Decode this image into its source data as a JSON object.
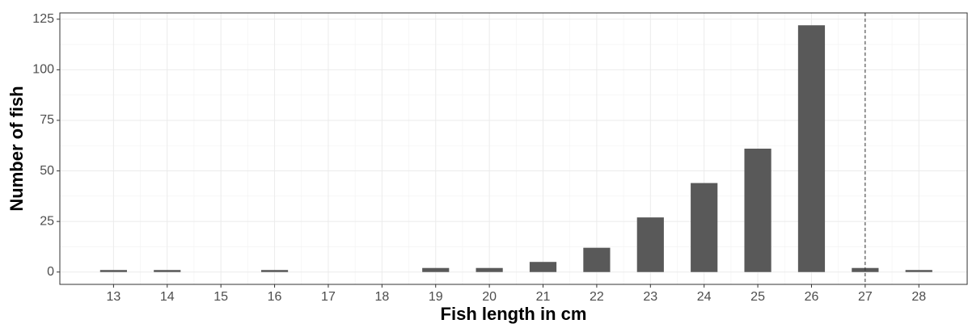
{
  "chart_data": {
    "type": "bar",
    "x_label": "Fish length in cm",
    "y_label": "Number of fish",
    "x": [
      13,
      14,
      16,
      19,
      20,
      21,
      22,
      23,
      24,
      25,
      26,
      27,
      28
    ],
    "values": [
      1,
      1,
      1,
      2,
      2,
      5,
      12,
      27,
      44,
      61,
      122,
      2,
      1
    ],
    "color": "#595959",
    "xlim": [
      12.0,
      28.9
    ],
    "xticks": [
      13,
      14,
      15,
      16,
      17,
      18,
      19,
      20,
      21,
      22,
      23,
      24,
      25,
      26,
      27,
      28
    ],
    "ylim": [
      -6.1,
      128.1
    ],
    "yticks": [
      0,
      25,
      50,
      75,
      100,
      125
    ],
    "vline": 27,
    "grid": true
  }
}
